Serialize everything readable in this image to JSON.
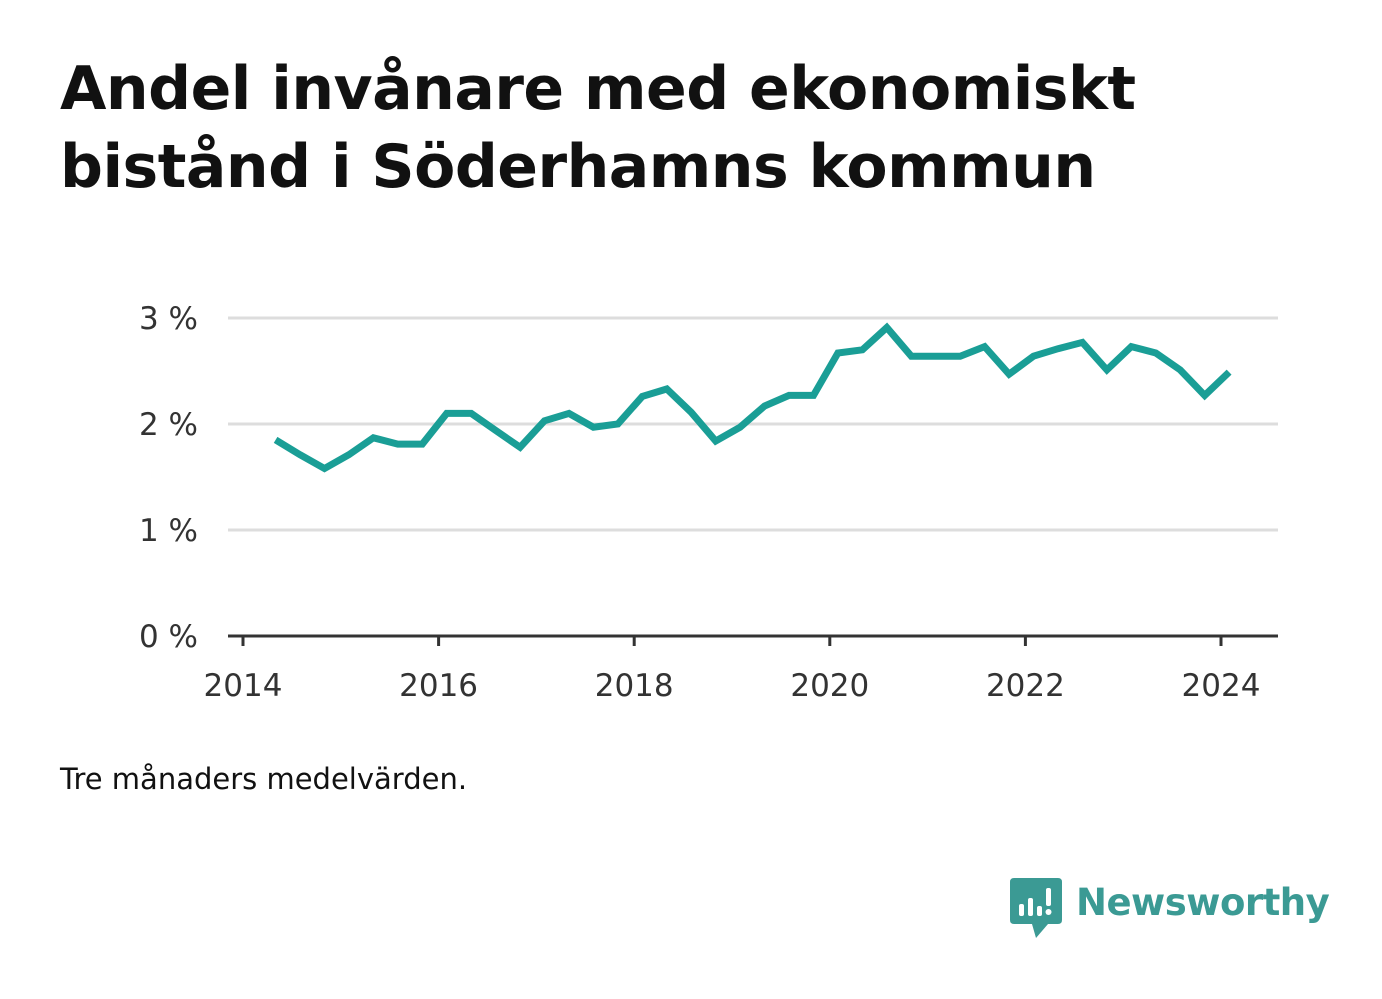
{
  "title": "Andel invånare med ekonomiskt bistånd i Söderhamns kommun",
  "footnote": "Tre månaders medelvärden.",
  "brand": {
    "name": "Newsworthy",
    "icon": "newsworthy-logo-icon",
    "color": "#3b9a94"
  },
  "colors": {
    "line": "#1a9e96",
    "grid": "#dddddd",
    "axis": "#333333",
    "text": "#333333"
  },
  "chart_data": {
    "type": "line",
    "title": "Andel invånare med ekonomiskt bistånd i Söderhamns kommun",
    "xlabel": "",
    "ylabel": "",
    "xlim": [
      2014.0,
      2024.6
    ],
    "ylim": [
      0,
      3
    ],
    "grid": true,
    "legend": "none",
    "x_ticks": [
      {
        "value": 2014,
        "label": "2014"
      },
      {
        "value": 2016,
        "label": "2016"
      },
      {
        "value": 2018,
        "label": "2018"
      },
      {
        "value": 2020,
        "label": "2020"
      },
      {
        "value": 2022,
        "label": "2022"
      },
      {
        "value": 2024,
        "label": "2024"
      }
    ],
    "y_ticks": [
      {
        "value": 0,
        "label": "0 %"
      },
      {
        "value": 1,
        "label": "1 %"
      },
      {
        "value": 2,
        "label": "2 %"
      },
      {
        "value": 3,
        "label": "3 %"
      }
    ],
    "series": [
      {
        "x": [
          "2014-05",
          "2014-08",
          "2014-11",
          "2015-02",
          "2015-05",
          "2015-08",
          "2015-11",
          "2016-02",
          "2016-05",
          "2016-08",
          "2016-11",
          "2017-02",
          "2017-05",
          "2017-08",
          "2017-11",
          "2018-02",
          "2018-05",
          "2018-08",
          "2018-11",
          "2019-02",
          "2019-05",
          "2019-08",
          "2019-11",
          "2020-02",
          "2020-05",
          "2020-08",
          "2020-11",
          "2021-02",
          "2021-05",
          "2021-08",
          "2021-11",
          "2022-02",
          "2022-05",
          "2022-08",
          "2022-11",
          "2023-02",
          "2023-05",
          "2023-08",
          "2023-11",
          "2024-02"
        ],
        "values": [
          1.85,
          1.71,
          1.58,
          1.71,
          1.87,
          1.81,
          1.81,
          2.1,
          2.1,
          1.94,
          1.78,
          2.03,
          2.1,
          1.97,
          2.0,
          2.26,
          2.33,
          2.11,
          1.84,
          1.97,
          2.17,
          2.27,
          2.27,
          2.67,
          2.7,
          2.91,
          2.64,
          2.64,
          2.64,
          2.73,
          2.47,
          2.64,
          2.71,
          2.77,
          2.51,
          2.73,
          2.67,
          2.51,
          2.27,
          2.49
        ]
      }
    ]
  }
}
